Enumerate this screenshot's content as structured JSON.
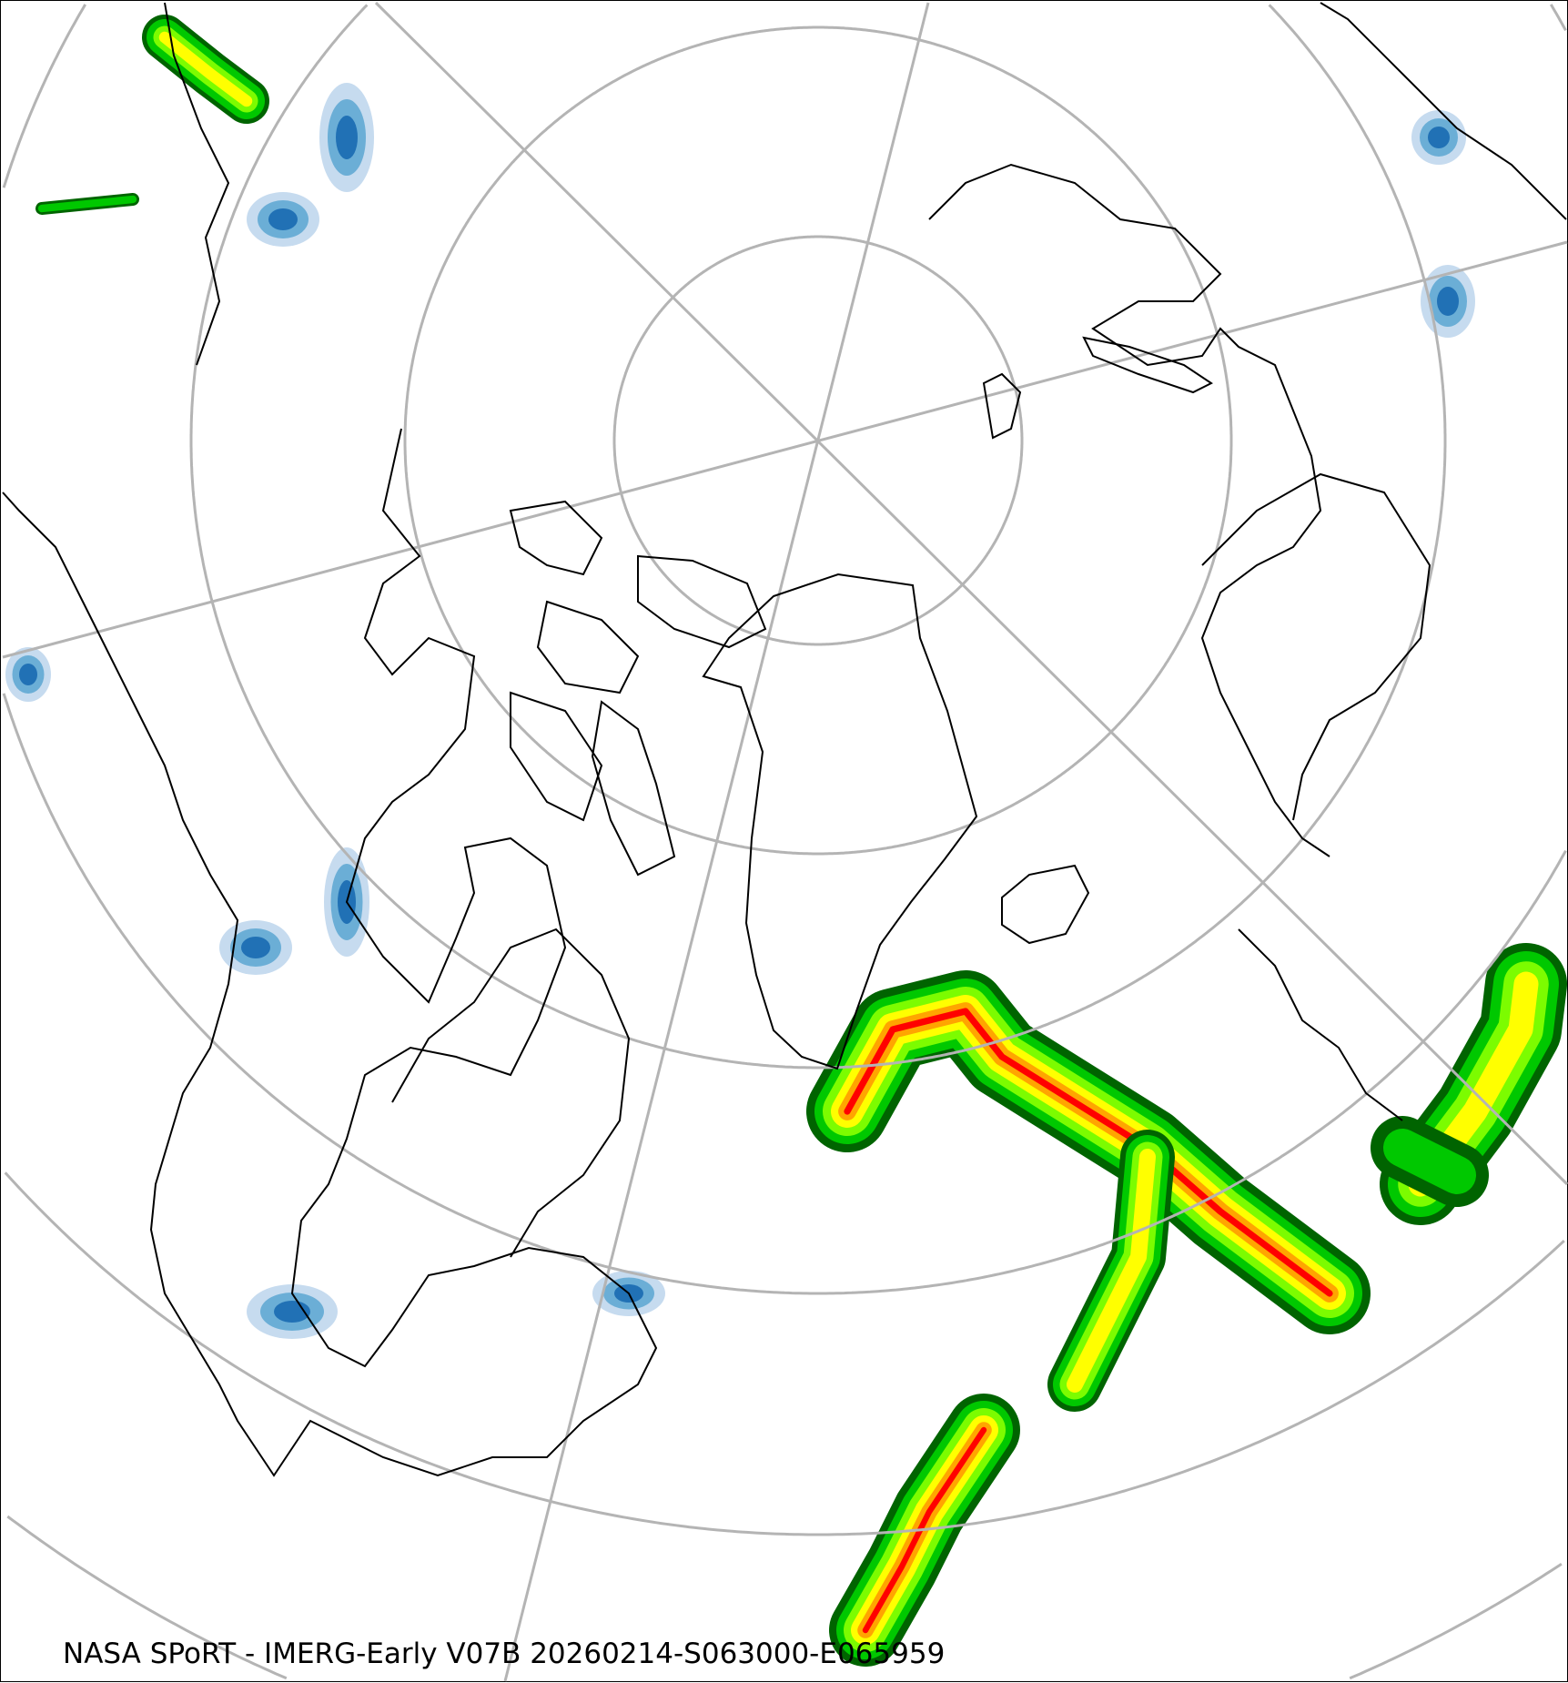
{
  "caption": "NASA SPoRT - IMERG-Early V07B 20260214-S063000-E065959",
  "map": {
    "projection": "north-polar-stereographic",
    "graticule_color": "#b4b4b4",
    "coastline_color": "#000000",
    "precip_colors": [
      "#c6dbef",
      "#6baed6",
      "#2171b5",
      "#006400",
      "#00c800",
      "#7cfc00",
      "#ffff00",
      "#ffa500",
      "#ff0000",
      "#ff00ff"
    ]
  }
}
